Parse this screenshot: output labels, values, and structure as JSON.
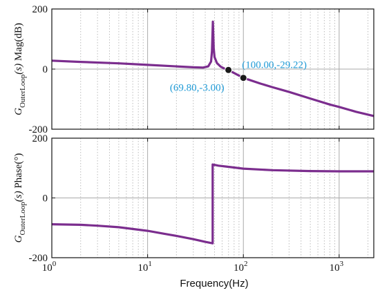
{
  "chart_data": [
    {
      "type": "line",
      "panel": "magnitude",
      "ylabel": {
        "g": "G",
        "sub": "OuterLoop",
        "args": "(s)",
        "tail": " Mag(dB)"
      },
      "x_scale": "log",
      "xlim": [
        1,
        2300
      ],
      "ylim": [
        -200,
        200
      ],
      "yticks": [
        "200",
        "0",
        "-200"
      ],
      "grid": "vertical dotted at log minor ticks; horizontal at 0",
      "colors": {
        "line": "#7b2d8e",
        "zero_line": "#aaaaaa",
        "grid": "#bbbbbb",
        "marker": "#1a1a1a",
        "annotation": "#1e9ad6"
      },
      "series": [
        {
          "x": [
            1,
            2,
            5,
            10,
            20,
            30,
            38,
            43,
            46,
            47,
            48,
            49,
            50,
            53,
            58,
            64,
            69.8,
            80,
            100,
            150,
            200,
            300,
            500,
            800,
            1000,
            1500,
            2300
          ],
          "values": [
            28,
            24,
            19,
            14,
            9,
            6,
            5,
            9,
            25,
            60,
            158,
            70,
            40,
            20,
            8,
            1,
            -3,
            -13,
            -29.22,
            -48,
            -60,
            -76,
            -98,
            -118,
            -126,
            -142,
            -156
          ]
        }
      ],
      "markers": [
        {
          "x": 69.8,
          "y": -3.0,
          "label": "(69.80,-3.00)"
        },
        {
          "x": 100.0,
          "y": -29.22,
          "label": "(100.00,-29.22)"
        }
      ]
    },
    {
      "type": "line",
      "panel": "phase",
      "ylabel": {
        "g": "G",
        "sub": "OuterLoop",
        "args": "(s)",
        "tail": " Phase(°)"
      },
      "xlabel": "Frequency(Hz)",
      "x_scale": "log",
      "xlim": [
        1,
        2300
      ],
      "ylim": [
        -200,
        200
      ],
      "yticks": [
        "200",
        "0",
        "-200"
      ],
      "xticks": [
        {
          "base": "10",
          "exp": "0"
        },
        {
          "base": "10",
          "exp": "1"
        },
        {
          "base": "10",
          "exp": "2"
        },
        {
          "base": "10",
          "exp": "3"
        }
      ],
      "grid": "vertical dotted at log minor ticks; horizontal at 0",
      "series": [
        {
          "x": [
            1,
            2,
            3,
            5,
            10,
            15,
            20,
            30,
            40,
            47.8,
            47.8,
            55,
            70,
            100,
            200,
            500,
            1000,
            2300
          ],
          "values": [
            -88,
            -90,
            -93,
            -98,
            -110,
            -120,
            -127,
            -138,
            -147,
            -152,
            112,
            108,
            104,
            98,
            93,
            90,
            89,
            89
          ]
        }
      ]
    }
  ]
}
